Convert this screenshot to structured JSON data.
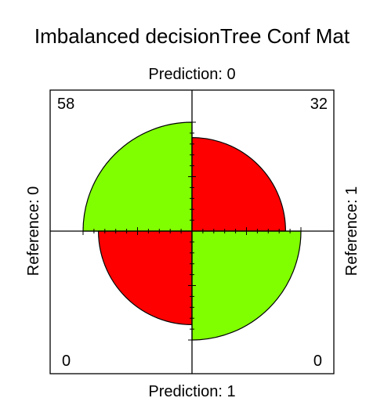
{
  "chart_data": {
    "type": "fourfold",
    "title": "Imbalanced decisionTree Conf Mat",
    "top_label": "Prediction: 0",
    "bottom_label": "Prediction: 1",
    "left_label": "Reference: 0",
    "right_label": "Reference: 1",
    "cells": [
      {
        "position": "top-left",
        "prediction": "0",
        "reference": "0",
        "value": 58,
        "color": "#80ff00"
      },
      {
        "position": "top-right",
        "prediction": "0",
        "reference": "1",
        "value": 32,
        "color": "#ff0000"
      },
      {
        "position": "bottom-left",
        "prediction": "1",
        "reference": "0",
        "value": 0,
        "color": "#ff0000"
      },
      {
        "position": "bottom-right",
        "prediction": "1",
        "reference": "1",
        "value": 0,
        "color": "#80ff00"
      }
    ],
    "displayed_radii_relative": {
      "top-left": 1.0,
      "top-right": 0.859,
      "bottom-left": 0.859,
      "bottom-right": 1.0
    }
  }
}
